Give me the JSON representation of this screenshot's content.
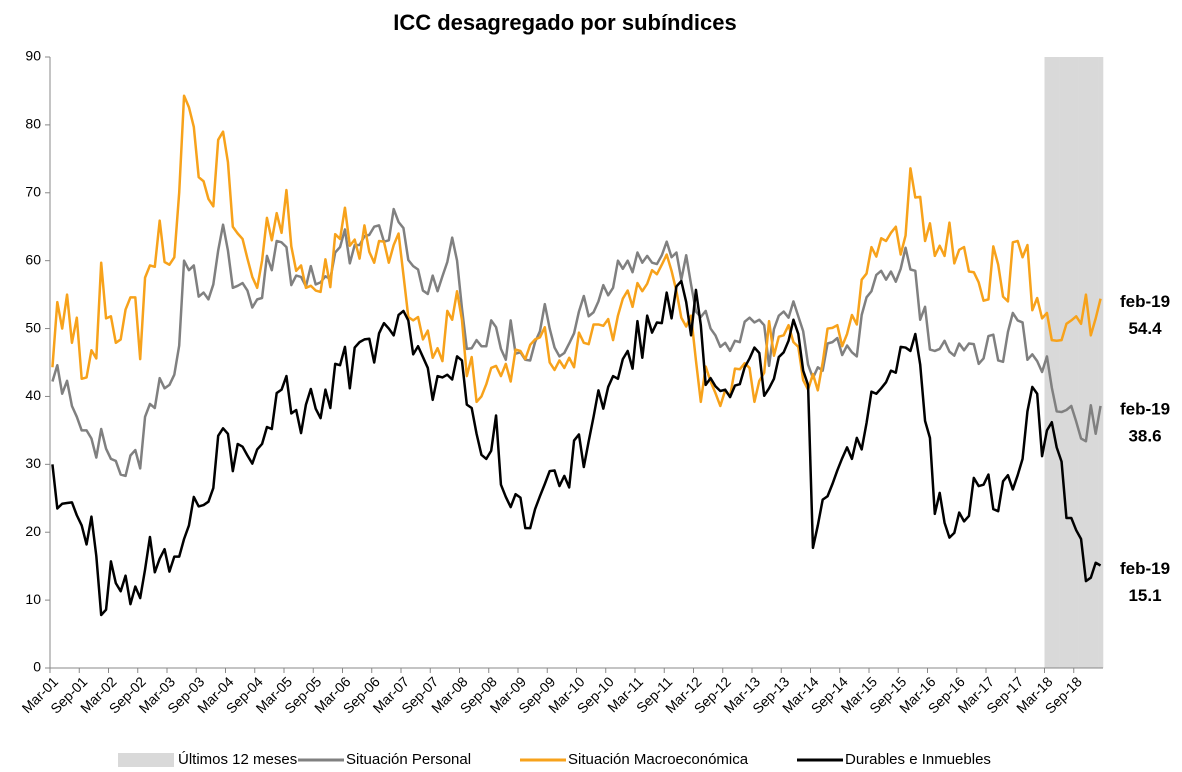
{
  "chart_data": {
    "type": "line",
    "title": "ICC desagregado por subíndices",
    "categories": [
      "Mar-01",
      null,
      null,
      null,
      null,
      null,
      "Sep-01",
      null,
      null,
      null,
      null,
      null,
      "Mar-02",
      null,
      null,
      null,
      null,
      null,
      "Sep-02",
      null,
      null,
      null,
      null,
      null,
      "Mar-03",
      null,
      null,
      null,
      null,
      null,
      "Sep-03",
      null,
      null,
      null,
      null,
      null,
      "Mar-04",
      null,
      null,
      null,
      null,
      null,
      "Sep-04",
      null,
      null,
      null,
      null,
      null,
      "Mar-05",
      null,
      null,
      null,
      null,
      null,
      "Sep-05",
      null,
      null,
      null,
      null,
      null,
      "Mar-06",
      null,
      null,
      null,
      null,
      null,
      "Sep-06",
      null,
      null,
      null,
      null,
      null,
      "Mar-07",
      null,
      null,
      null,
      null,
      null,
      "Sep-07",
      null,
      null,
      null,
      null,
      null,
      "Mar-08",
      null,
      null,
      null,
      null,
      null,
      "Sep-08",
      null,
      null,
      null,
      null,
      null,
      "Mar-09",
      null,
      null,
      null,
      null,
      null,
      "Sep-09",
      null,
      null,
      null,
      null,
      null,
      "Mar-10",
      null,
      null,
      null,
      null,
      null,
      "Sep-10",
      null,
      null,
      null,
      null,
      null,
      "Mar-11",
      null,
      null,
      null,
      null,
      null,
      "Sep-11",
      null,
      null,
      null,
      null,
      null,
      "Mar-12",
      null,
      null,
      null,
      null,
      null,
      "Sep-12",
      null,
      null,
      null,
      null,
      null,
      "Mar-13",
      null,
      null,
      null,
      null,
      null,
      "Sep-13",
      null,
      null,
      null,
      null,
      null,
      "Mar-14",
      null,
      null,
      null,
      null,
      null,
      "Sep-14",
      null,
      null,
      null,
      null,
      null,
      "Mar-15",
      null,
      null,
      null,
      null,
      null,
      "Sep-15",
      null,
      null,
      null,
      null,
      null,
      "Mar-16",
      null,
      null,
      null,
      null,
      null,
      "Sep-16",
      null,
      null,
      null,
      null,
      null,
      "Mar-17",
      null,
      null,
      null,
      null,
      null,
      "Sep-17",
      null,
      null,
      null,
      null,
      null,
      "Mar-18",
      null,
      null,
      null,
      null,
      null,
      "Sep-18",
      null,
      null,
      null,
      null,
      null
    ],
    "series": [
      {
        "name": "Últimos 12 meses",
        "type": "bar",
        "color": "#d9d9d9",
        "values": [
          null,
          null,
          null,
          null,
          null,
          null,
          null,
          null,
          null,
          null,
          null,
          null,
          null,
          null,
          null,
          null,
          null,
          null,
          null,
          null,
          null,
          null,
          null,
          null,
          null,
          null,
          null,
          null,
          null,
          null,
          null,
          null,
          null,
          null,
          null,
          null,
          null,
          null,
          null,
          null,
          null,
          null,
          null,
          null,
          null,
          null,
          null,
          null,
          null,
          null,
          null,
          null,
          null,
          null,
          null,
          null,
          null,
          null,
          null,
          null,
          null,
          null,
          null,
          null,
          null,
          null,
          null,
          null,
          null,
          null,
          null,
          null,
          null,
          null,
          null,
          null,
          null,
          null,
          null,
          null,
          null,
          null,
          null,
          null,
          null,
          null,
          null,
          null,
          null,
          null,
          null,
          null,
          null,
          null,
          null,
          null,
          null,
          null,
          null,
          null,
          null,
          null,
          null,
          null,
          null,
          null,
          null,
          null,
          null,
          null,
          null,
          null,
          null,
          null,
          null,
          null,
          null,
          null,
          null,
          null,
          null,
          null,
          null,
          null,
          null,
          null,
          null,
          null,
          null,
          null,
          null,
          null,
          null,
          null,
          null,
          null,
          null,
          null,
          null,
          null,
          null,
          null,
          null,
          null,
          null,
          null,
          null,
          null,
          null,
          null,
          null,
          null,
          null,
          null,
          null,
          null,
          null,
          null,
          null,
          null,
          null,
          null,
          null,
          null,
          null,
          null,
          null,
          null,
          null,
          null,
          null,
          null,
          null,
          null,
          null,
          null,
          null,
          null,
          null,
          null,
          null,
          null,
          null,
          null,
          null,
          null,
          null,
          null,
          null,
          null,
          null,
          null,
          null,
          null,
          null,
          null,
          null,
          null,
          null,
          null,
          null,
          null,
          null,
          null,
          90,
          90,
          90,
          90,
          90,
          90,
          90,
          90,
          90,
          90,
          90,
          90
        ]
      },
      {
        "name": "Situación Personal",
        "color": "#808080",
        "end_label": "feb-19",
        "values": [
          42.2,
          44.6,
          40.4,
          42.3,
          38.6,
          37,
          35,
          35,
          33.8,
          31,
          35.2,
          32.3,
          30.8,
          30.5,
          28.5,
          28.3,
          31.3,
          32.1,
          29.4,
          37,
          38.9,
          38.3,
          42.7,
          41.2,
          41.7,
          43.2,
          47.5,
          60,
          58.6,
          59.3,
          54.7,
          55.3,
          54.3,
          56.5,
          61.5,
          65.3,
          61.5,
          56,
          56.3,
          56.7,
          55.6,
          53.1,
          54.3,
          54.5,
          60.7,
          58.6,
          62.9,
          62.7,
          62,
          56.4,
          57.8,
          57.6,
          56.2,
          59.2,
          56.5,
          56.8,
          57.7,
          57.3,
          61.2,
          62,
          64.6,
          59.6,
          62.3,
          62.3,
          63.6,
          63.8,
          65,
          65.2,
          62.8,
          63,
          67.6,
          65.7,
          64.8,
          60.1,
          59.2,
          58.7,
          55.6,
          55.1,
          57.8,
          55.5,
          57.7,
          59.8,
          63.4,
          60,
          53,
          47,
          47.1,
          48.3,
          47.4,
          47.4,
          51.2,
          50.2,
          47,
          45.4,
          51.2,
          46.3,
          46.5,
          45.4,
          45.3,
          48,
          49.6,
          53.6,
          50,
          47.2,
          45.9,
          46.4,
          47.8,
          49.3,
          52.5,
          54.8,
          51.8,
          52.4,
          54,
          56.4,
          54.9,
          56,
          60,
          58.8,
          60,
          58.3,
          61.2,
          59.7,
          60.7,
          59.7,
          59.5,
          60.8,
          62.8,
          60.5,
          61.2,
          57.2,
          60.8,
          56.5,
          52.5,
          51.7,
          52.6,
          50,
          49,
          47.3,
          47.9,
          46.7,
          48.2,
          48,
          51,
          51.6,
          50.9,
          51.3,
          50.5,
          44.5,
          49.9,
          51.9,
          52.5,
          51.6,
          54,
          51.8,
          49.6,
          44.7,
          42.7,
          44.3,
          43.8,
          47.8,
          48,
          48.6,
          46.1,
          47.5,
          46.5,
          45.9,
          52,
          54.6,
          55.5,
          57.9,
          58.5,
          57.2,
          58.4,
          56.9,
          58.8,
          61.9,
          58.7,
          58.5,
          51.3,
          53.2,
          46.9,
          46.7,
          47,
          48.2,
          46.6,
          46,
          47.8,
          46.8,
          47.8,
          47.7,
          44.8,
          45.6,
          48.9,
          49.1,
          45.3,
          45.1,
          49.5,
          52.3,
          51.2,
          50.9,
          45.4,
          46.2,
          45.2,
          43.6,
          45.9,
          41.3,
          37.8,
          37.7,
          38,
          38.6,
          36.3,
          33.8,
          33.4,
          38.7,
          34.5,
          38.6
        ]
      },
      {
        "name": "Situación Macroeconómica",
        "color": "#f7a21b",
        "end_label": "feb-19",
        "values": [
          44.3,
          53.9,
          50,
          55,
          47.9,
          51.6,
          42.6,
          42.8,
          46.8,
          45.6,
          59.7,
          51.5,
          51.8,
          47.9,
          48.4,
          52.8,
          54.6,
          54.6,
          45.5,
          57.5,
          59.3,
          59.1,
          65.9,
          59.8,
          59.4,
          60.5,
          70,
          84.3,
          82.6,
          79.7,
          72.3,
          71.7,
          69.1,
          68,
          77.8,
          79,
          74.5,
          65,
          64,
          63.2,
          60.3,
          57.6,
          56,
          60,
          66.3,
          63,
          67,
          64.1,
          70.4,
          62.1,
          58.5,
          59.3,
          56,
          56.3,
          55.6,
          55.4,
          60.2,
          56.1,
          63.9,
          63.2,
          67.8,
          62.2,
          63.1,
          60.3,
          65.2,
          61.3,
          59.7,
          62.9,
          62.8,
          59.7,
          62.3,
          64,
          57.9,
          51.7,
          51.2,
          51.7,
          48.4,
          49.7,
          45.7,
          47.1,
          45.2,
          52.6,
          51.3,
          55.5,
          51.3,
          43,
          45.8,
          39.2,
          40,
          41.8,
          44.2,
          44.5,
          43,
          44.8,
          42.2,
          46.9,
          46.7,
          45.5,
          47.6,
          48.4,
          48.7,
          50.2,
          45,
          43.9,
          45.3,
          44.2,
          45.7,
          44.3,
          49.4,
          47.9,
          47.7,
          50.6,
          50.6,
          50.4,
          51.4,
          48.3,
          51.9,
          54.4,
          55.6,
          53.2,
          56.7,
          55.5,
          56.6,
          58.6,
          58,
          59.4,
          60.9,
          58.5,
          55.5,
          51.6,
          50.3,
          51.9,
          45.3,
          39.2,
          44.4,
          42.2,
          40.5,
          38.6,
          40.9,
          40,
          44.1,
          44,
          44.9,
          44.2,
          39.2,
          42.3,
          43.5,
          51.1,
          46,
          48.8,
          49,
          50.5,
          48,
          47.3,
          42.4,
          41,
          43.3,
          40.9,
          45,
          50,
          50.1,
          50.5,
          47.4,
          49.2,
          52,
          50.6,
          57.2,
          58.1,
          62,
          60.6,
          63.3,
          62.9,
          64.1,
          65,
          60.9,
          63.7,
          73.6,
          69.3,
          69.4,
          62.9,
          65.5,
          60.7,
          62.2,
          60.7,
          65.6,
          59.6,
          61.6,
          62,
          58.4,
          58.3,
          56.8,
          54.1,
          54.3,
          62.1,
          59.4,
          54.7,
          54,
          62.7,
          62.9,
          60.5,
          62.3,
          52.7,
          54.5,
          51.5,
          52.3,
          48.3,
          48.2,
          48.3,
          50.7,
          51.2,
          51.8,
          50.7,
          55,
          49,
          51.5,
          54.4
        ]
      },
      {
        "name": "Durables e Inmuebles",
        "color": "#000000",
        "end_label": "feb-19",
        "values": [
          30,
          23.5,
          24.2,
          24.3,
          24.4,
          22.5,
          21,
          18.2,
          22.3,
          16.5,
          7.8,
          8.6,
          15.7,
          12.5,
          11.3,
          13.6,
          9.4,
          12,
          10.3,
          14.5,
          19.3,
          14.1,
          16.1,
          17.5,
          14.2,
          16.4,
          16.4,
          19,
          21,
          25.2,
          23.8,
          24,
          24.5,
          26.5,
          34.2,
          35.3,
          34.5,
          29,
          33,
          32.6,
          31.3,
          30.1,
          32.2,
          33,
          35.5,
          35.2,
          40.5,
          41,
          43,
          37.5,
          38,
          34.6,
          38.8,
          41.1,
          38.2,
          36.8,
          41,
          38.3,
          44.8,
          44.6,
          47.3,
          41.2,
          47.2,
          48,
          48.4,
          48.5,
          45,
          49.3,
          50.8,
          50,
          49,
          52,
          52.6,
          51.2,
          46.2,
          47.4,
          45.8,
          44.2,
          39.5,
          43,
          42.8,
          43.2,
          42.5,
          45.9,
          45.3,
          38.8,
          38.3,
          34.5,
          31.4,
          30.8,
          32,
          37.2,
          27,
          25.2,
          23.7,
          25.6,
          25.1,
          20.6,
          20.6,
          23.4,
          25.3,
          27.1,
          29,
          29.1,
          26.8,
          28.3,
          26.6,
          33.5,
          34.4,
          29.6,
          33.4,
          37,
          40.9,
          38.2,
          41.4,
          43,
          42.6,
          45.5,
          46.7,
          44.1,
          51.1,
          45.7,
          51.9,
          49.4,
          50.9,
          50.8,
          55.3,
          51.5,
          56.2,
          57,
          53.9,
          49,
          55.7,
          50.5,
          41.7,
          42.7,
          41.5,
          40.8,
          41,
          39.9,
          41.6,
          41.8,
          44.3,
          45.6,
          47.2,
          46.4,
          40.1,
          41.2,
          42.6,
          45.8,
          46.5,
          48.2,
          51.3,
          49.2,
          43.8,
          41.7,
          17.7,
          21,
          24.8,
          25.3,
          27.1,
          29.1,
          30.9,
          32.5,
          30.8,
          33.9,
          32.2,
          36.1,
          40.7,
          40.4,
          41.2,
          42.1,
          43.8,
          43.5,
          47.3,
          47.2,
          46.7,
          49.2,
          44.7,
          36.4,
          33.9,
          22.7,
          25.8,
          21.4,
          19.2,
          19.9,
          22.9,
          21.6,
          22.4,
          28,
          26.8,
          27,
          28.5,
          23.4,
          23.1,
          27.5,
          28.4,
          26.3,
          28.4,
          30.8,
          37.8,
          41.4,
          40.4,
          31.2,
          35,
          36.2,
          32.5,
          30.4,
          22.1,
          22.1,
          20.3,
          19,
          12.8,
          13.3,
          15.5,
          15.1
        ]
      }
    ],
    "ylim": [
      0,
      90
    ],
    "yticks": [
      0,
      10,
      20,
      30,
      40,
      50,
      60,
      70,
      80,
      90
    ],
    "grid": false
  }
}
